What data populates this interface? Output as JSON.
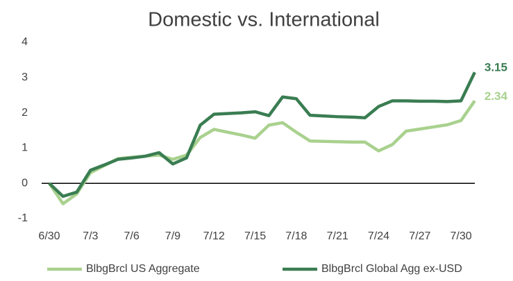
{
  "chart_data": {
    "type": "line",
    "title": "Domestic vs. International",
    "categories": [
      "6/30",
      null,
      null,
      "7/3",
      null,
      null,
      "7/6",
      null,
      null,
      "7/9",
      null,
      null,
      "7/12",
      null,
      null,
      "7/15",
      null,
      null,
      "7/18",
      null,
      null,
      "7/21",
      null,
      null,
      "7/24",
      null,
      null,
      "7/27",
      null,
      null,
      "7/30",
      null
    ],
    "series": [
      {
        "name": "BlbgBrcl US Aggregate",
        "color": "#a9d18e",
        "values": [
          0,
          -0.58,
          -0.3,
          0.3,
          0.5,
          0.7,
          0.74,
          0.77,
          0.8,
          0.68,
          0.8,
          1.3,
          1.53,
          1.45,
          1.37,
          1.28,
          1.65,
          1.72,
          1.45,
          1.2,
          1.19,
          1.18,
          1.17,
          1.17,
          0.92,
          1.1,
          1.48,
          1.54,
          1.6,
          1.66,
          1.78,
          2.34
        ]
      },
      {
        "name": "BlbgBrcl Global Agg ex-USD",
        "color": "#3a7d52",
        "values": [
          0,
          -0.37,
          -0.25,
          0.37,
          0.52,
          0.68,
          0.72,
          0.77,
          0.87,
          0.55,
          0.72,
          1.65,
          1.96,
          1.98,
          2.0,
          2.03,
          1.92,
          2.45,
          2.4,
          1.93,
          1.91,
          1.89,
          1.88,
          1.86,
          2.18,
          2.34,
          2.34,
          2.33,
          2.33,
          2.32,
          2.34,
          3.15
        ]
      }
    ],
    "ylim": [
      -1,
      4
    ],
    "yticks": [
      -1,
      0,
      1,
      2,
      3,
      4
    ],
    "grid": false
  }
}
